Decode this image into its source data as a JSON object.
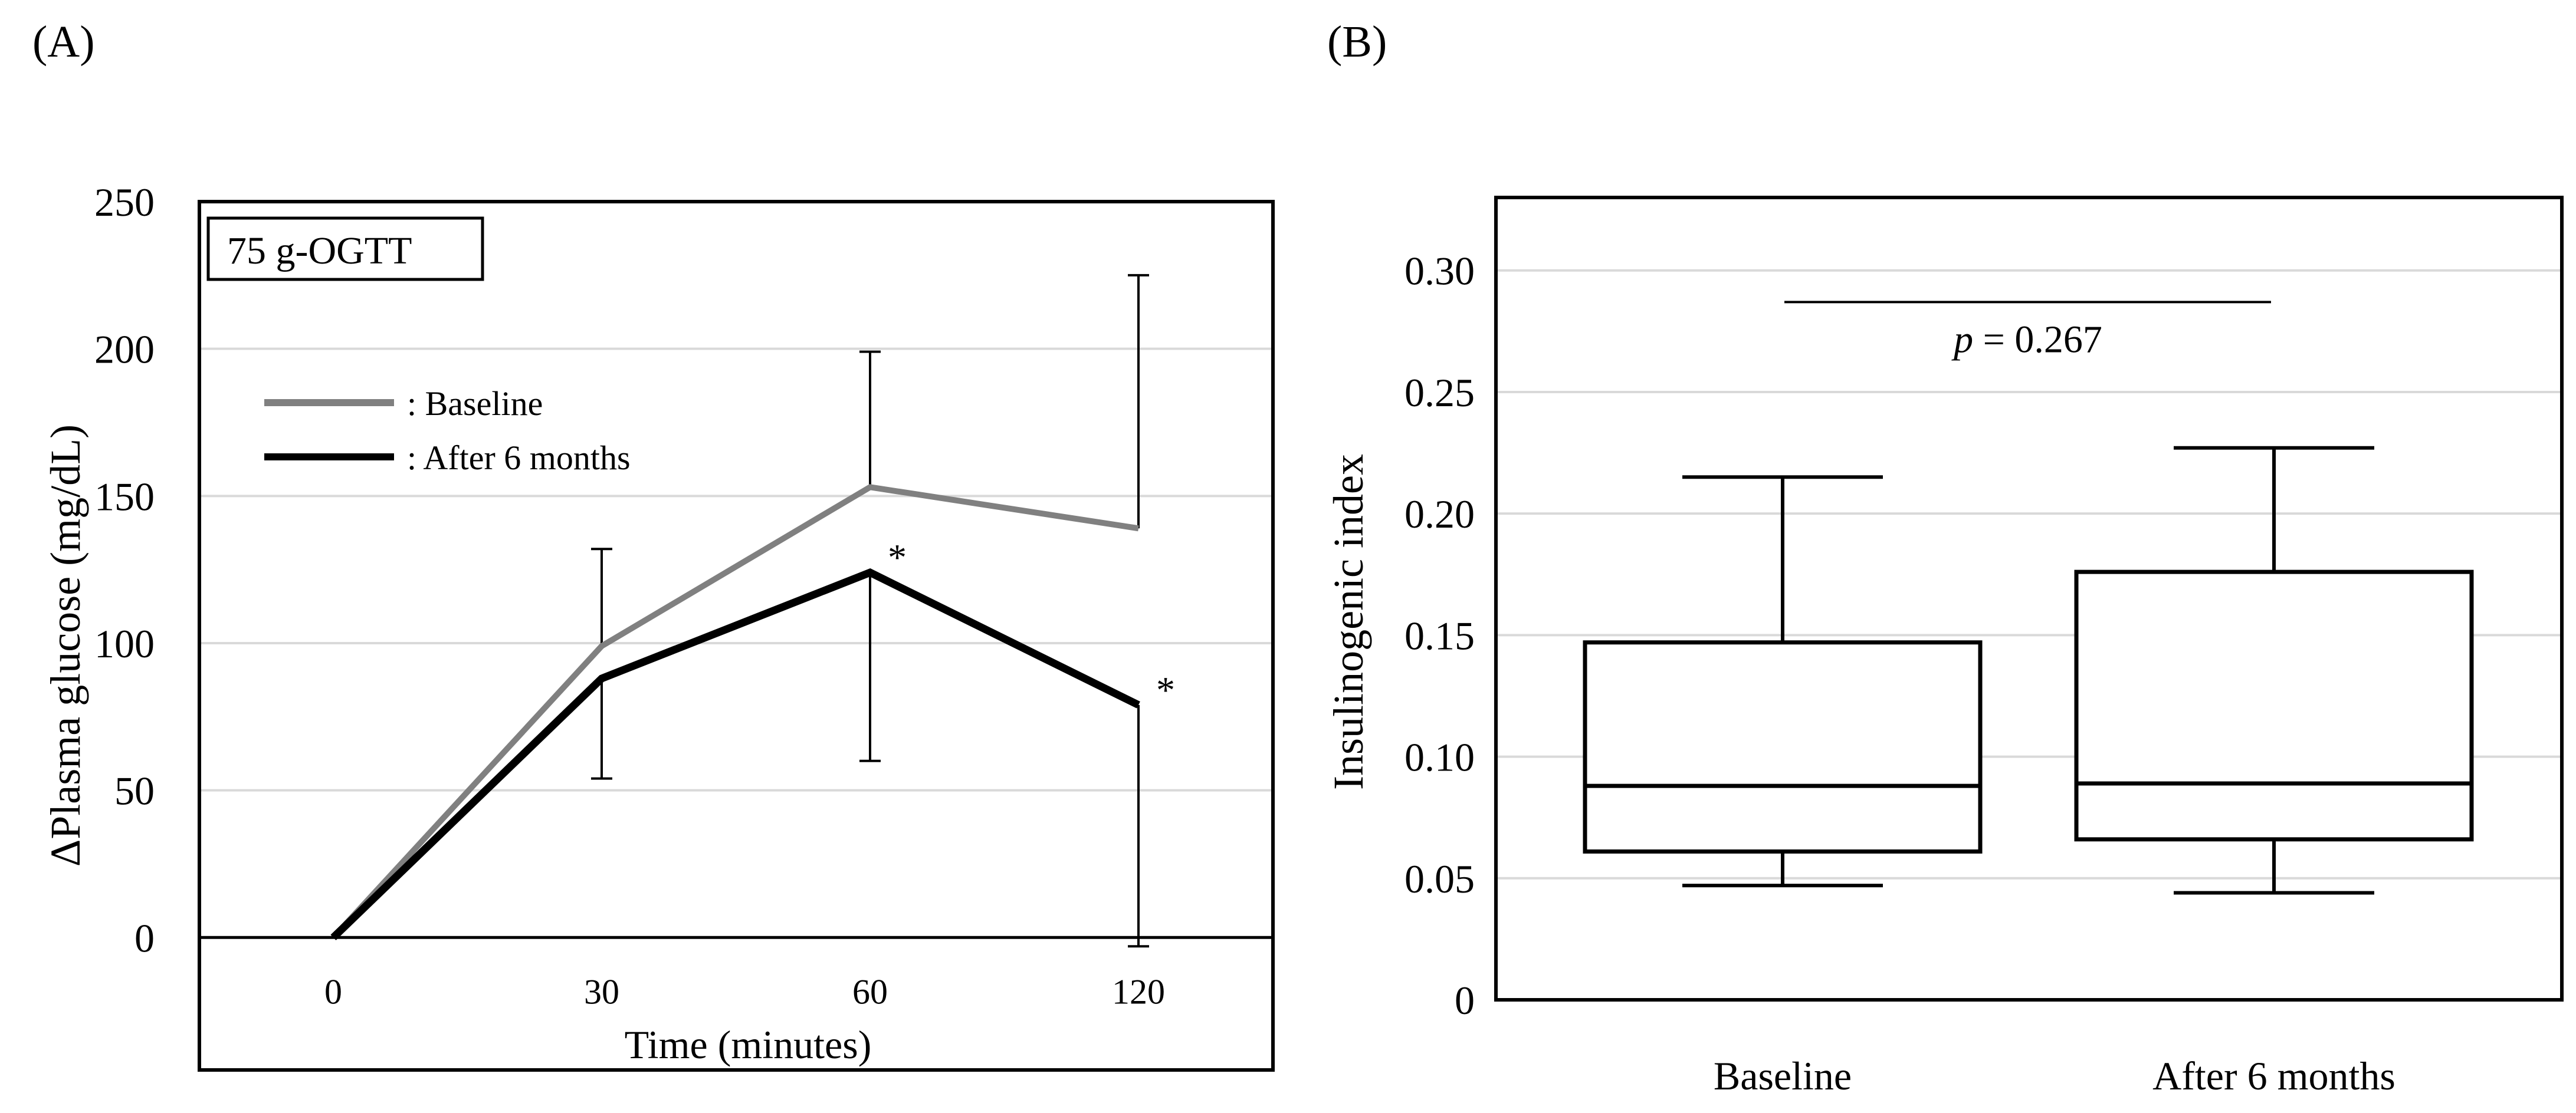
{
  "panels": {
    "a_label": "(A)",
    "b_label": "(B)"
  },
  "colors": {
    "baseline": "#808080",
    "after": "#000000",
    "grid": "#d9d9d9",
    "axis": "#000000"
  },
  "chart_data": [
    {
      "panel": "A",
      "type": "line",
      "title": "",
      "inset_label": "75 g-OGTT",
      "xlabel": "Time (minutes)",
      "ylabel": "ΔPlasma glucose (mg/dL)",
      "categories": [
        "0",
        "30",
        "60",
        "120"
      ],
      "ylim": [
        -45,
        250
      ],
      "yticks": [
        0,
        50,
        100,
        150,
        200,
        250
      ],
      "grid": true,
      "legend_position": "top-left",
      "series": [
        {
          "name": ": Baseline",
          "values": [
            0,
            99,
            153,
            139
          ],
          "error_upper": [
            null,
            132,
            199,
            225
          ],
          "error_lower": [
            null,
            null,
            null,
            null
          ]
        },
        {
          "name": ": After 6 months",
          "values": [
            0,
            88,
            124,
            79
          ],
          "error_upper": [
            null,
            null,
            null,
            null
          ],
          "error_lower": [
            null,
            54,
            60,
            -3
          ]
        }
      ],
      "annotations": [
        {
          "text": "*",
          "category": "60",
          "value": 124
        },
        {
          "text": "*",
          "category": "120",
          "value": 79
        }
      ]
    },
    {
      "panel": "B",
      "type": "box",
      "title": "",
      "xlabel": "",
      "ylabel": "Insulinogenic index",
      "categories": [
        "Baseline",
        "After 6 months"
      ],
      "ylim": [
        0,
        0.33
      ],
      "yticks": [
        0,
        0.05,
        0.1,
        0.15,
        0.2,
        0.25,
        0.3
      ],
      "ytick_labels": [
        "0",
        "0.05",
        "0.10",
        "0.15",
        "0.20",
        "0.25",
        "0.30"
      ],
      "grid": true,
      "boxes": [
        {
          "name": "Baseline",
          "whisker_low": 0.047,
          "q1": 0.061,
          "median": 0.088,
          "q3": 0.147,
          "whisker_high": 0.215
        },
        {
          "name": "After 6 months",
          "whisker_low": 0.044,
          "q1": 0.066,
          "median": 0.089,
          "q3": 0.176,
          "whisker_high": 0.227
        }
      ],
      "significance": {
        "p_symbol": "p",
        "p_text": " = 0.267",
        "y": 0.287
      }
    }
  ]
}
